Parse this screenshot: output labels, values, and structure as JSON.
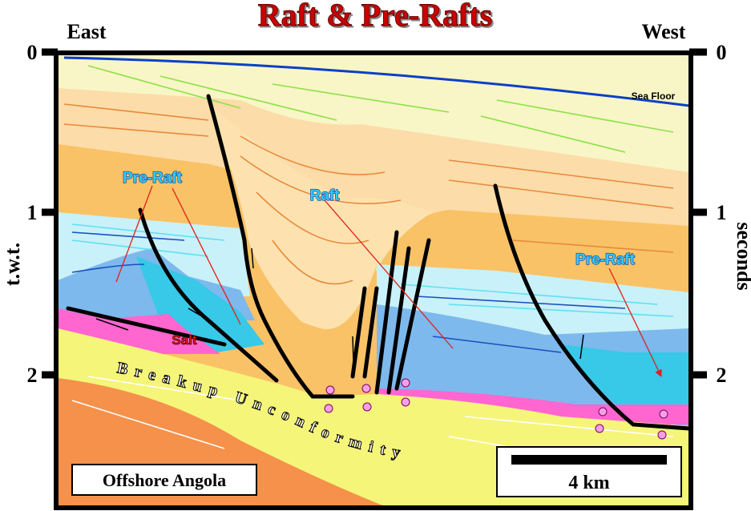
{
  "header": {
    "title": "Raft & Pre-Rafts",
    "left_direction": "East",
    "right_direction": "West"
  },
  "axes": {
    "left_label": "t.w.t.",
    "right_label": "seconds",
    "left_ticks": [
      "0",
      "1",
      "2"
    ],
    "right_ticks": [
      "0",
      "1",
      "2"
    ]
  },
  "labels": {
    "sea_floor": "Sea Floor",
    "pre_raft_left": "Pre-Raft",
    "raft": "Raft",
    "pre_raft_right": "Pre-Raft",
    "salt": "Salt",
    "unconformity": "Breakup Unconformity"
  },
  "location": "Offshore Angola",
  "scale_bar": "4 km"
}
